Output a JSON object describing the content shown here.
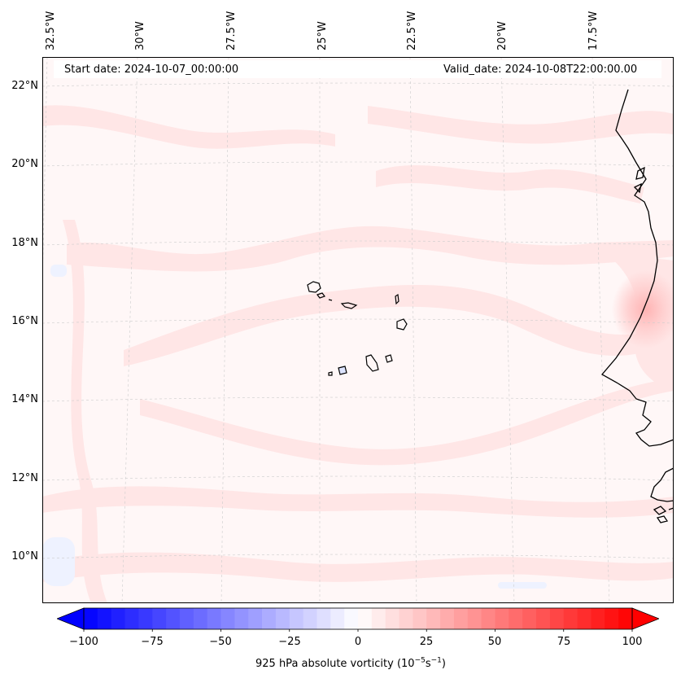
{
  "map": {
    "start_label": "Start date: 2024-10-07_00:00:00",
    "valid_label": "Valid_date: 2024-10-08T22:00:00.00",
    "lon_labels": [
      "32.5°W",
      "30°W",
      "27.5°W",
      "25°W",
      "22.5°W",
      "20°W",
      "17.5°W"
    ],
    "lat_labels": [
      "22°N",
      "20°N",
      "18°N",
      "16°N",
      "14°N",
      "12°N",
      "10°N"
    ]
  },
  "colorbar": {
    "ticks": [
      "−100",
      "−75",
      "−50",
      "−25",
      "0",
      "25",
      "50",
      "75",
      "100"
    ],
    "title_prefix": "925 hPa absolute vorticity (10",
    "title_exp1": "−5",
    "title_mid": "s",
    "title_exp2": "−1",
    "title_suffix": ")",
    "min_color": "#0000ff",
    "mid_color": "#ffffff",
    "max_color": "#ff0000"
  }
}
